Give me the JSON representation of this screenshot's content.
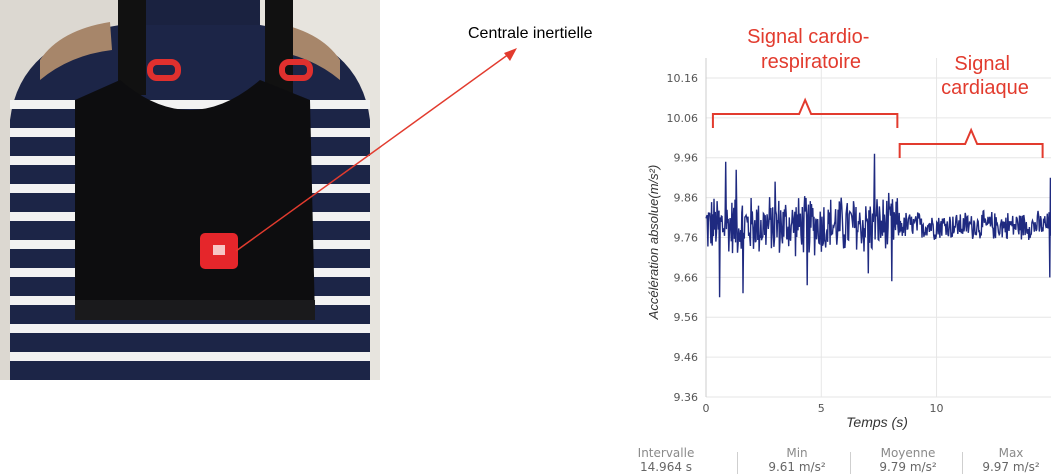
{
  "photo": {
    "caption": ""
  },
  "annotation": {
    "label": "Centrale inertielle",
    "arrow_color": "#e23b2e"
  },
  "chart_data": {
    "type": "line",
    "title": "",
    "xlabel": "Temps (s)",
    "ylabel": "Accélération absolue(m/s²)",
    "xlim": [
      0,
      14.964
    ],
    "ylim": [
      9.36,
      10.2
    ],
    "x_ticks": [
      0,
      5,
      10
    ],
    "y_ticks": [
      9.36,
      9.46,
      9.56,
      9.66,
      9.76,
      9.86,
      9.96,
      10.06,
      10.16
    ],
    "x_tick_labels": [
      "0",
      "5",
      "10"
    ],
    "y_tick_labels": [
      "9.36",
      "9.46",
      "9.56",
      "9.66",
      "9.76",
      "9.86",
      "9.96",
      "10.06",
      "10.16"
    ],
    "grid": true,
    "line_color": "#1f2a80",
    "series_summary": {
      "mean": 9.79,
      "min": 9.61,
      "max": 9.97,
      "duration_s": 14.964
    },
    "annotations": [
      {
        "text": "Signal cardio-\nrespiratoire",
        "x_start": 0.3,
        "x_end": 8.3,
        "color": "#e23b2e"
      },
      {
        "text": "Signal\ncardiaque",
        "x_start": 8.4,
        "x_end": 14.6,
        "color": "#e23b2e"
      }
    ]
  },
  "stats": {
    "intervalle_label": "Intervalle",
    "intervalle_value": "14.964 s",
    "min_label": "Min",
    "min_value": "9.61 m/s²",
    "moyenne_label": "Moyenne",
    "moyenne_value": "9.79 m/s²",
    "max_label": "Max",
    "max_value": "9.97 m/s²"
  }
}
